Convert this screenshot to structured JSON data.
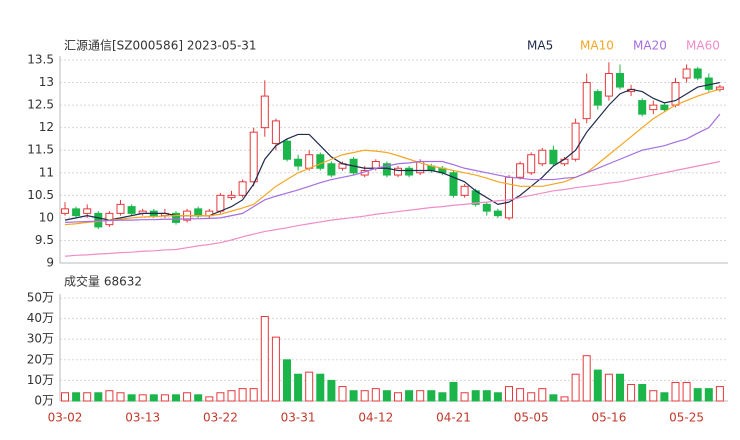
{
  "chart_data": [
    {
      "type": "candlestick",
      "title": "汇源通信[SZ000586] 2023-05-31",
      "up_color": "#e5383b",
      "down_color": "#1bb54a",
      "open": [
        10.1,
        10.2,
        10.1,
        10.1,
        9.85,
        10.1,
        10.25,
        10.1,
        10.15,
        10.05,
        10.1,
        9.95,
        10.2,
        10.05,
        10.15,
        10.45,
        10.5,
        10.8,
        12.0,
        11.65,
        11.7,
        11.3,
        11.1,
        11.4,
        11.2,
        11.1,
        11.3,
        10.95,
        11.1,
        11.2,
        10.95,
        11.1,
        11.0,
        11.15,
        11.1,
        11.0,
        10.5,
        10.6,
        10.3,
        10.15,
        10.0,
        10.9,
        11.0,
        11.2,
        11.5,
        11.2,
        11.3,
        12.2,
        12.8,
        12.7,
        13.2,
        12.8,
        12.6,
        12.4,
        12.5,
        12.5,
        13.1,
        13.3,
        13.1,
        12.85
      ],
      "high": [
        10.35,
        10.25,
        10.3,
        10.15,
        10.15,
        10.4,
        10.3,
        10.2,
        10.2,
        10.2,
        10.15,
        10.2,
        10.25,
        10.2,
        10.55,
        10.6,
        10.85,
        12.0,
        13.05,
        12.2,
        11.75,
        11.4,
        11.5,
        11.45,
        11.25,
        11.25,
        11.35,
        11.15,
        11.3,
        11.25,
        11.15,
        11.15,
        11.3,
        11.2,
        11.15,
        11.05,
        10.75,
        10.65,
        10.35,
        10.2,
        10.95,
        11.25,
        11.45,
        11.55,
        11.6,
        11.35,
        12.2,
        13.2,
        12.85,
        13.45,
        13.4,
        12.95,
        12.65,
        12.6,
        12.55,
        13.1,
        13.4,
        13.35,
        13.2,
        12.95
      ],
      "low": [
        10.05,
        10.0,
        10.0,
        9.75,
        9.8,
        10.05,
        10.05,
        10.05,
        10.0,
        10.0,
        9.85,
        9.9,
        10.0,
        10.0,
        10.1,
        10.4,
        10.45,
        10.7,
        11.8,
        11.5,
        11.25,
        11.05,
        11.05,
        11.05,
        10.9,
        11.05,
        10.95,
        10.9,
        11.05,
        10.9,
        10.9,
        10.9,
        10.95,
        11.0,
        10.95,
        10.45,
        10.45,
        10.25,
        10.05,
        10.0,
        9.95,
        10.85,
        10.95,
        11.15,
        11.15,
        11.15,
        11.25,
        12.1,
        12.4,
        12.6,
        12.85,
        12.7,
        12.25,
        12.3,
        12.35,
        12.45,
        13.0,
        13.05,
        12.8,
        12.8
      ],
      "close": [
        10.2,
        10.05,
        10.2,
        9.8,
        10.1,
        10.3,
        10.1,
        10.15,
        10.05,
        10.1,
        9.9,
        10.15,
        10.05,
        10.15,
        10.5,
        10.5,
        10.8,
        11.9,
        12.7,
        12.15,
        11.3,
        11.15,
        11.4,
        11.1,
        10.95,
        11.2,
        11.0,
        11.05,
        11.25,
        10.95,
        11.1,
        10.95,
        11.25,
        11.05,
        11.0,
        10.5,
        10.7,
        10.3,
        10.15,
        10.05,
        10.9,
        11.2,
        11.4,
        11.5,
        11.2,
        11.3,
        12.1,
        13.0,
        12.5,
        13.2,
        12.9,
        12.85,
        12.3,
        12.5,
        12.4,
        13.0,
        13.3,
        13.1,
        12.85,
        12.9
      ],
      "series": [
        {
          "name": "MA5",
          "color": "#1f2a4d",
          "values": [
            9.95,
            10.0,
            10.05,
            10.0,
            9.95,
            10.0,
            10.05,
            10.1,
            10.1,
            10.1,
            10.05,
            10.05,
            10.05,
            10.05,
            10.15,
            10.25,
            10.4,
            10.75,
            11.3,
            11.6,
            11.75,
            11.85,
            11.85,
            11.6,
            11.35,
            11.2,
            11.15,
            11.1,
            11.1,
            11.1,
            11.05,
            11.05,
            11.05,
            11.05,
            11.0,
            10.9,
            10.8,
            10.6,
            10.45,
            10.3,
            10.35,
            10.5,
            10.7,
            10.9,
            11.15,
            11.3,
            11.5,
            11.9,
            12.2,
            12.5,
            12.75,
            12.85,
            12.8,
            12.65,
            12.55,
            12.6,
            12.75,
            12.9,
            12.95,
            13.0
          ]
        },
        {
          "name": "MA10",
          "color": "#f5a623",
          "values": [
            9.85,
            9.87,
            9.9,
            9.92,
            9.95,
            9.97,
            10.0,
            10.02,
            10.03,
            10.04,
            10.05,
            10.05,
            10.05,
            10.05,
            10.08,
            10.15,
            10.22,
            10.3,
            10.5,
            10.7,
            10.85,
            11.0,
            11.1,
            11.2,
            11.3,
            11.4,
            11.45,
            11.5,
            11.48,
            11.45,
            11.38,
            11.3,
            11.22,
            11.15,
            11.1,
            11.05,
            11.0,
            10.95,
            10.88,
            10.8,
            10.75,
            10.7,
            10.7,
            10.7,
            10.75,
            10.8,
            10.9,
            11.0,
            11.2,
            11.4,
            11.6,
            11.8,
            12.0,
            12.2,
            12.35,
            12.5,
            12.6,
            12.7,
            12.78,
            12.85
          ]
        },
        {
          "name": "MA20",
          "color": "#a66ee0",
          "values": [
            9.9,
            9.91,
            9.92,
            9.93,
            9.94,
            9.95,
            9.95,
            9.96,
            9.96,
            9.97,
            9.97,
            9.98,
            9.98,
            9.99,
            10.0,
            10.05,
            10.1,
            10.25,
            10.4,
            10.48,
            10.55,
            10.62,
            10.7,
            10.78,
            10.85,
            10.9,
            10.95,
            11.02,
            11.1,
            11.15,
            11.2,
            11.22,
            11.25,
            11.25,
            11.25,
            11.18,
            11.1,
            11.05,
            11.0,
            10.95,
            10.9,
            10.88,
            10.85,
            10.85,
            10.85,
            10.88,
            10.9,
            11.0,
            11.1,
            11.2,
            11.3,
            11.4,
            11.5,
            11.55,
            11.6,
            11.68,
            11.75,
            11.88,
            12.0,
            12.3
          ]
        },
        {
          "name": "MA60",
          "color": "#f08cc8",
          "values": [
            9.15,
            9.17,
            9.18,
            9.2,
            9.21,
            9.23,
            9.24,
            9.26,
            9.27,
            9.29,
            9.3,
            9.34,
            9.38,
            9.41,
            9.45,
            9.51,
            9.58,
            9.64,
            9.7,
            9.74,
            9.78,
            9.83,
            9.87,
            9.91,
            9.95,
            9.98,
            10.01,
            10.04,
            10.08,
            10.11,
            10.14,
            10.17,
            10.2,
            10.23,
            10.25,
            10.28,
            10.3,
            10.33,
            10.35,
            10.38,
            10.4,
            10.45,
            10.5,
            10.55,
            10.6,
            10.63,
            10.67,
            10.7,
            10.73,
            10.77,
            10.8,
            10.85,
            10.9,
            10.95,
            11.0,
            11.05,
            11.1,
            11.15,
            11.2,
            11.25
          ]
        }
      ],
      "ylim": [
        9,
        13.5
      ],
      "yticks": [
        9,
        9.5,
        10,
        10.5,
        11,
        11.5,
        12,
        12.5,
        13,
        13.5
      ],
      "grid": true
    },
    {
      "type": "bar",
      "title": "成交量 68632",
      "categories": [
        "03-02",
        null,
        null,
        null,
        null,
        null,
        null,
        "03-13",
        null,
        null,
        null,
        null,
        null,
        null,
        "03-22",
        null,
        null,
        null,
        null,
        null,
        null,
        "03-31",
        null,
        null,
        null,
        null,
        null,
        null,
        "04-12",
        null,
        null,
        null,
        null,
        null,
        null,
        "04-21",
        null,
        null,
        null,
        null,
        null,
        null,
        "05-05",
        null,
        null,
        null,
        null,
        null,
        null,
        "05-16",
        null,
        null,
        null,
        null,
        null,
        null,
        "05-25",
        null,
        null,
        null
      ],
      "values": [
        4,
        4,
        4,
        4,
        5,
        4,
        3,
        3,
        3,
        3,
        3,
        4,
        3,
        2,
        4,
        5,
        6,
        6,
        41,
        31,
        20,
        13,
        14,
        13,
        10,
        7,
        5,
        5,
        6,
        5,
        4,
        5,
        5,
        5,
        4,
        9,
        4,
        5,
        5,
        4,
        7,
        6,
        4,
        6,
        3,
        2,
        13,
        22,
        15,
        13,
        13,
        8,
        8,
        5,
        4,
        9,
        9,
        6,
        6,
        7
      ],
      "ylim": [
        0,
        50
      ],
      "yticks": [
        {
          "value": 0,
          "label": "0万"
        },
        {
          "value": 10,
          "label": "10万"
        },
        {
          "value": 20,
          "label": "20万"
        },
        {
          "value": 30,
          "label": "30万"
        },
        {
          "value": 40,
          "label": "40万"
        },
        {
          "value": 50,
          "label": "50万"
        }
      ],
      "grid": true
    }
  ]
}
